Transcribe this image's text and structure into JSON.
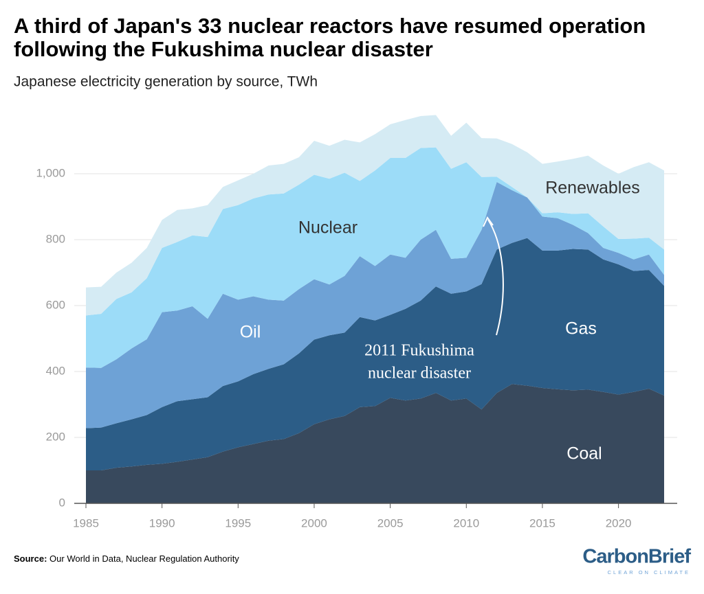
{
  "chart_data": {
    "type": "stacked-area",
    "title": "A third of Japan's 33 nuclear reactors have resumed operation following the Fukushima nuclear disaster",
    "subtitle": "Japanese electricity generation by source, TWh",
    "x": [
      1985,
      1986,
      1987,
      1988,
      1989,
      1990,
      1991,
      1992,
      1993,
      1994,
      1995,
      1996,
      1997,
      1998,
      1999,
      2000,
      2001,
      2002,
      2003,
      2004,
      2005,
      2006,
      2007,
      2008,
      2009,
      2010,
      2011,
      2012,
      2013,
      2014,
      2015,
      2016,
      2017,
      2018,
      2019,
      2020,
      2021,
      2022,
      2023
    ],
    "series": [
      {
        "name": "Coal",
        "color": "#38495d",
        "values": [
          100,
          100,
          108,
          112,
          117,
          120,
          126,
          133,
          140,
          157,
          170,
          180,
          190,
          195,
          213,
          240,
          255,
          265,
          292,
          295,
          320,
          312,
          318,
          335,
          312,
          318,
          285,
          335,
          362,
          357,
          350,
          346,
          343,
          345,
          338,
          330,
          338,
          348,
          327
        ]
      },
      {
        "name": "Gas",
        "color": "#2c5d87",
        "values": [
          128,
          130,
          135,
          143,
          151,
          172,
          184,
          183,
          182,
          199,
          200,
          212,
          218,
          227,
          242,
          257,
          255,
          253,
          273,
          260,
          252,
          278,
          297,
          323,
          324,
          325,
          380,
          435,
          428,
          448,
          417,
          421,
          429,
          425,
          402,
          395,
          367,
          360,
          333
        ]
      },
      {
        "name": "Oil",
        "color": "#6ea2d6",
        "values": [
          184,
          181,
          194,
          215,
          230,
          288,
          275,
          282,
          238,
          280,
          248,
          236,
          210,
          193,
          195,
          183,
          154,
          172,
          185,
          165,
          183,
          155,
          185,
          172,
          106,
          102,
          165,
          205,
          160,
          123,
          103,
          98,
          73,
          50,
          35,
          35,
          35,
          47,
          33
        ]
      },
      {
        "name": "Nuclear",
        "color": "#9cdcf8",
        "values": [
          158,
          164,
          183,
          170,
          185,
          195,
          208,
          215,
          248,
          257,
          287,
          297,
          319,
          325,
          317,
          317,
          321,
          313,
          228,
          290,
          293,
          303,
          278,
          250,
          273,
          290,
          160,
          16,
          10,
          0,
          10,
          18,
          33,
          60,
          65,
          42,
          63,
          51,
          77
        ]
      },
      {
        "name": "Renewables",
        "color": "#d5ebf4",
        "values": [
          85,
          82,
          80,
          90,
          92,
          85,
          97,
          82,
          97,
          67,
          75,
          75,
          88,
          90,
          83,
          103,
          100,
          100,
          117,
          110,
          102,
          115,
          97,
          98,
          100,
          120,
          118,
          116,
          130,
          137,
          150,
          154,
          167,
          175,
          185,
          198,
          217,
          229,
          240
        ]
      }
    ],
    "xlim": [
      1985,
      2023
    ],
    "xticks": [
      1985,
      1990,
      1995,
      2000,
      2005,
      2010,
      2015,
      2020
    ],
    "ylim": [
      0,
      1200
    ],
    "yticks": [
      0,
      200,
      400,
      600,
      800,
      {
        "value": 1000,
        "label": "1,000"
      }
    ],
    "grid": true,
    "annotation": [
      "2011 Fukushima",
      "nuclear disaster"
    ],
    "source_label": "Source:",
    "source": "Our World in Data, Nuclear Regulation Authority",
    "logo": "CarbonBrief",
    "logo_tagline": "CLEAR ON CLIMATE"
  }
}
